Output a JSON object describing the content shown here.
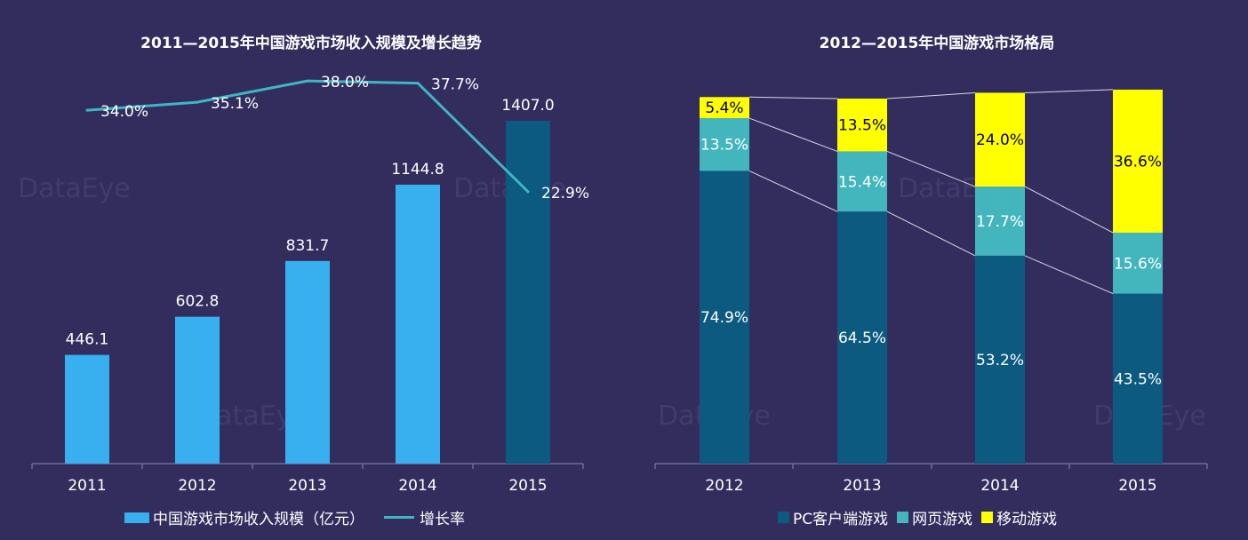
{
  "watermark": "DataEye",
  "colors": {
    "bg": "#332d5e",
    "bar_light": "#38b0ef",
    "bar_dark": "#0d5a80",
    "growth_line": "#3eb6c3",
    "pc": "#0d5a80",
    "web": "#43b5bd",
    "mobile": "#ffff00",
    "axis": "#8a86a8"
  },
  "chart_data": [
    {
      "type": "bar",
      "title": "2011—2015年中国游戏市场收入规模及增长趋势",
      "categories": [
        "2011",
        "2012",
        "2013",
        "2014",
        "2015"
      ],
      "series": [
        {
          "name": "中国游戏市场收入规模（亿元）",
          "values": [
            446.1,
            602.8,
            831.7,
            1144.8,
            1407.0
          ],
          "labels": [
            "446.1",
            "602.8",
            "831.7",
            "1144.8",
            "1407.0"
          ]
        },
        {
          "name": "增长率",
          "type": "line",
          "values": [
            34.0,
            35.1,
            38.0,
            37.7,
            22.9
          ],
          "labels": [
            "34.0%",
            "35.1%",
            "38.0%",
            "37.7%",
            "22.9%"
          ]
        }
      ],
      "ylim": [
        0,
        1450
      ],
      "grid": false,
      "legend": "bottom"
    },
    {
      "type": "bar",
      "stacked": true,
      "title": "2012—2015年中国游戏市场格局",
      "categories": [
        "2012",
        "2013",
        "2014",
        "2015"
      ],
      "series": [
        {
          "name": "PC客户端游戏",
          "values": [
            74.9,
            64.5,
            53.2,
            43.5
          ],
          "labels": [
            "74.9%",
            "64.5%",
            "53.2%",
            "43.5%"
          ]
        },
        {
          "name": "网页游戏",
          "values": [
            13.5,
            15.4,
            17.7,
            15.6
          ],
          "labels": [
            "13.5%",
            "15.4%",
            "17.7%",
            "15.6%"
          ]
        },
        {
          "name": "移动游戏",
          "values": [
            5.4,
            13.5,
            24.0,
            36.6
          ],
          "labels": [
            "5.4%",
            "13.5%",
            "24.0%",
            "36.6%"
          ]
        }
      ],
      "grid": false,
      "legend": "bottom"
    }
  ]
}
